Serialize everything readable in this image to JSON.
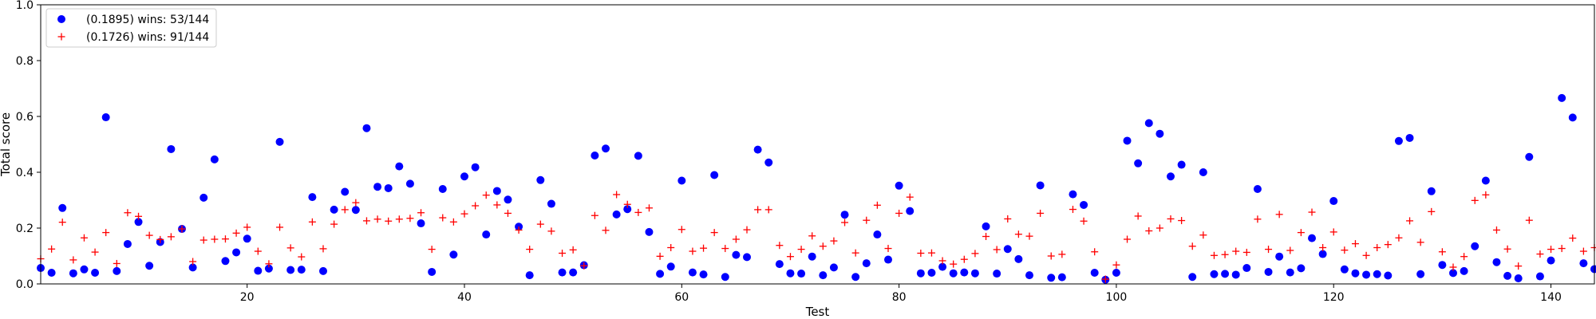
{
  "chart_data": {
    "type": "scatter",
    "xlabel": "Test",
    "ylabel": "Total score",
    "xlim": [
      1,
      144
    ],
    "ylim": [
      0,
      1.0
    ],
    "xticks": [
      20,
      40,
      60,
      80,
      100,
      120,
      140
    ],
    "yticks": [
      0.0,
      0.2,
      0.4,
      0.6,
      0.8,
      1.0
    ],
    "ytick_labels": [
      "0.0",
      "0.2",
      "0.4",
      "0.6",
      "0.8",
      "1.0"
    ],
    "grid": false,
    "legend_position": "top-left",
    "series": [
      {
        "name": "(0.1895) wins: 53/144",
        "marker": "circle",
        "color": "#0000ff",
        "values": [
          0.057,
          0.04,
          0.272,
          0.038,
          0.052,
          0.04,
          0.597,
          0.046,
          0.143,
          0.222,
          0.065,
          0.15,
          0.483,
          0.197,
          0.059,
          0.309,
          0.446,
          0.082,
          0.113,
          0.162,
          0.047,
          0.055,
          0.509,
          0.05,
          0.051,
          0.311,
          0.046,
          0.266,
          0.33,
          0.265,
          0.558,
          0.348,
          0.343,
          0.421,
          0.359,
          0.217,
          0.043,
          0.34,
          0.105,
          0.385,
          0.418,
          0.177,
          0.333,
          0.302,
          0.205,
          0.031,
          0.372,
          0.287,
          0.041,
          0.041,
          0.067,
          0.46,
          0.485,
          0.249,
          0.268,
          0.459,
          0.186,
          0.036,
          0.062,
          0.37,
          0.041,
          0.034,
          0.39,
          0.025,
          0.104,
          0.096,
          0.481,
          0.435,
          0.071,
          0.038,
          0.037,
          0.098,
          0.031,
          0.059,
          0.248,
          0.025,
          0.074,
          0.177,
          0.087,
          0.352,
          0.261,
          0.038,
          0.04,
          0.061,
          0.038,
          0.041,
          0.038,
          0.206,
          0.037,
          0.125,
          0.089,
          0.031,
          0.353,
          0.022,
          0.024,
          0.321,
          0.283,
          0.04,
          0.015,
          0.04,
          0.513,
          0.432,
          0.576,
          0.538,
          0.385,
          0.427,
          0.025,
          0.4,
          0.035,
          0.036,
          0.033,
          0.057,
          0.34,
          0.043,
          0.098,
          0.041,
          0.056,
          0.164,
          0.107,
          0.297,
          0.052,
          0.038,
          0.033,
          0.035,
          0.03,
          0.512,
          0.523,
          0.035,
          0.332,
          0.068,
          0.039,
          0.046,
          0.135,
          0.37,
          0.078,
          0.029,
          0.02,
          0.455,
          0.027,
          0.084,
          0.666,
          0.596,
          0.074,
          0.053
        ]
      },
      {
        "name": "(0.1726) wins: 91/144",
        "marker": "plus",
        "color": "#ff0000",
        "values": [
          0.09,
          0.125,
          0.221,
          0.086,
          0.165,
          0.114,
          0.184,
          0.073,
          0.255,
          0.242,
          0.174,
          0.159,
          0.169,
          0.197,
          0.08,
          0.157,
          0.16,
          0.161,
          0.182,
          0.203,
          0.117,
          0.072,
          0.203,
          0.129,
          0.097,
          0.222,
          0.126,
          0.214,
          0.266,
          0.291,
          0.226,
          0.232,
          0.225,
          0.232,
          0.235,
          0.255,
          0.124,
          0.237,
          0.222,
          0.251,
          0.28,
          0.318,
          0.283,
          0.253,
          0.193,
          0.124,
          0.214,
          0.189,
          0.11,
          0.122,
          0.065,
          0.245,
          0.192,
          0.32,
          0.285,
          0.256,
          0.272,
          0.099,
          0.13,
          0.195,
          0.117,
          0.128,
          0.184,
          0.127,
          0.16,
          0.194,
          0.266,
          0.266,
          0.138,
          0.098,
          0.124,
          0.172,
          0.135,
          0.154,
          0.22,
          0.111,
          0.228,
          0.282,
          0.127,
          0.253,
          0.311,
          0.11,
          0.111,
          0.083,
          0.071,
          0.088,
          0.109,
          0.17,
          0.123,
          0.233,
          0.178,
          0.171,
          0.253,
          0.1,
          0.106,
          0.267,
          0.225,
          0.115,
          0.017,
          0.068,
          0.16,
          0.243,
          0.19,
          0.2,
          0.233,
          0.227,
          0.135,
          0.175,
          0.102,
          0.105,
          0.117,
          0.113,
          0.232,
          0.124,
          0.249,
          0.12,
          0.184,
          0.257,
          0.13,
          0.186,
          0.121,
          0.144,
          0.102,
          0.13,
          0.141,
          0.165,
          0.226,
          0.149,
          0.259,
          0.115,
          0.06,
          0.098,
          0.299,
          0.319,
          0.193,
          0.125,
          0.064,
          0.228,
          0.107,
          0.124,
          0.127,
          0.164,
          0.117,
          0.13
        ]
      }
    ]
  }
}
